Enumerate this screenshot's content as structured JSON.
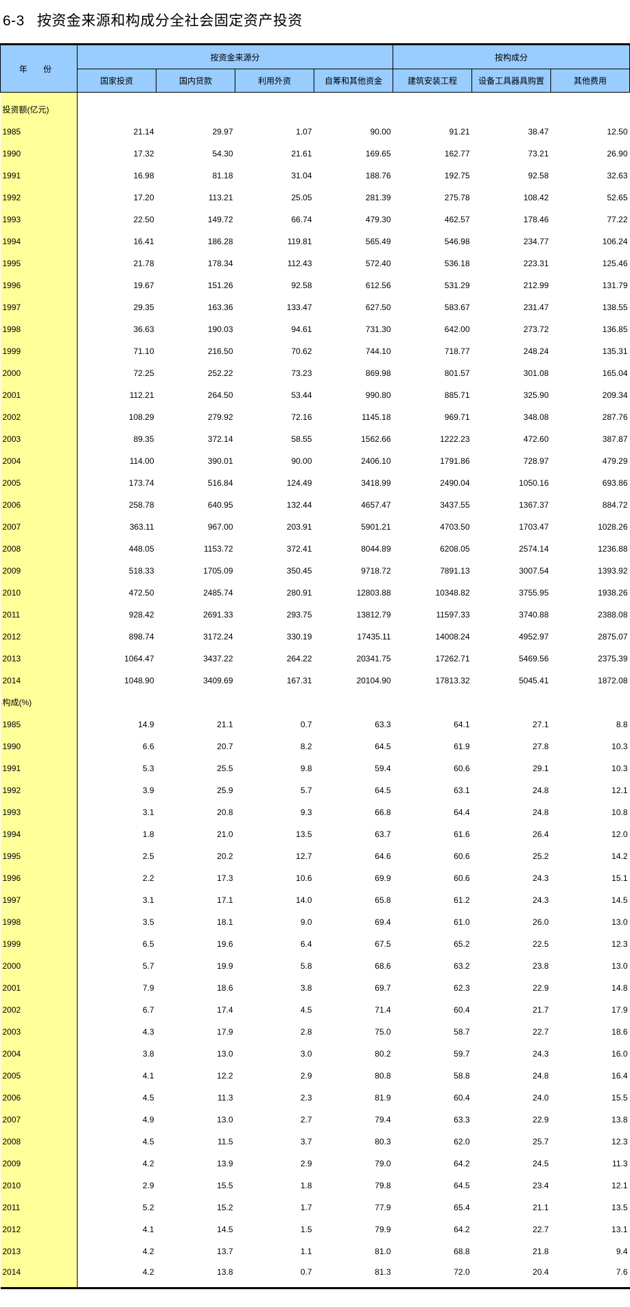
{
  "title": {
    "number": "6-3",
    "text": "按资金来源和构成分全社会固定资产投资"
  },
  "colors": {
    "header_bg": "#99CCFF",
    "year_col_bg": "#FFFF99"
  },
  "header": {
    "year_label": "年 份",
    "group_source": "按资金来源分",
    "group_composition": "按构成分",
    "columns": [
      "国家投资",
      "国内贷款",
      "利用外资",
      "自筹和其他资金",
      "建筑安装工程",
      "设备工具器具购置",
      "其他费用"
    ]
  },
  "sections": [
    {
      "label": "投资额(亿元)",
      "rows": [
        {
          "year": "1985",
          "values": [
            "21.14",
            "29.97",
            "1.07",
            "90.00",
            "91.21",
            "38.47",
            "12.50"
          ]
        },
        {
          "year": "1990",
          "values": [
            "17.32",
            "54.30",
            "21.61",
            "169.65",
            "162.77",
            "73.21",
            "26.90"
          ]
        },
        {
          "year": "1991",
          "values": [
            "16.98",
            "81.18",
            "31.04",
            "188.76",
            "192.75",
            "92.58",
            "32.63"
          ]
        },
        {
          "year": "1992",
          "values": [
            "17.20",
            "113.21",
            "25.05",
            "281.39",
            "275.78",
            "108.42",
            "52.65"
          ]
        },
        {
          "year": "1993",
          "values": [
            "22.50",
            "149.72",
            "66.74",
            "479.30",
            "462.57",
            "178.46",
            "77.22"
          ]
        },
        {
          "year": "1994",
          "values": [
            "16.41",
            "186.28",
            "119.81",
            "565.49",
            "546.98",
            "234.77",
            "106.24"
          ]
        },
        {
          "year": "1995",
          "values": [
            "21.78",
            "178.34",
            "112.43",
            "572.40",
            "536.18",
            "223.31",
            "125.46"
          ]
        },
        {
          "year": "1996",
          "values": [
            "19.67",
            "151.26",
            "92.58",
            "612.56",
            "531.29",
            "212.99",
            "131.79"
          ]
        },
        {
          "year": "1997",
          "values": [
            "29.35",
            "163.36",
            "133.47",
            "627.50",
            "583.67",
            "231.47",
            "138.55"
          ]
        },
        {
          "year": "1998",
          "values": [
            "36.63",
            "190.03",
            "94.61",
            "731.30",
            "642.00",
            "273.72",
            "136.85"
          ]
        },
        {
          "year": "1999",
          "values": [
            "71.10",
            "216.50",
            "70.62",
            "744.10",
            "718.77",
            "248.24",
            "135.31"
          ]
        },
        {
          "year": "2000",
          "values": [
            "72.25",
            "252.22",
            "73.23",
            "869.98",
            "801.57",
            "301.08",
            "165.04"
          ]
        },
        {
          "year": "2001",
          "values": [
            "112.21",
            "264.50",
            "53.44",
            "990.80",
            "885.71",
            "325.90",
            "209.34"
          ]
        },
        {
          "year": "2002",
          "values": [
            "108.29",
            "279.92",
            "72.16",
            "1145.18",
            "969.71",
            "348.08",
            "287.76"
          ]
        },
        {
          "year": "2003",
          "values": [
            "89.35",
            "372.14",
            "58.55",
            "1562.66",
            "1222.23",
            "472.60",
            "387.87"
          ]
        },
        {
          "year": "2004",
          "values": [
            "114.00",
            "390.01",
            "90.00",
            "2406.10",
            "1791.86",
            "728.97",
            "479.29"
          ]
        },
        {
          "year": "2005",
          "values": [
            "173.74",
            "516.84",
            "124.49",
            "3418.99",
            "2490.04",
            "1050.16",
            "693.86"
          ]
        },
        {
          "year": "2006",
          "values": [
            "258.78",
            "640.95",
            "132.44",
            "4657.47",
            "3437.55",
            "1367.37",
            "884.72"
          ]
        },
        {
          "year": "2007",
          "values": [
            "363.11",
            "967.00",
            "203.91",
            "5901.21",
            "4703.50",
            "1703.47",
            "1028.26"
          ]
        },
        {
          "year": "2008",
          "values": [
            "448.05",
            "1153.72",
            "372.41",
            "8044.89",
            "6208.05",
            "2574.14",
            "1236.88"
          ]
        },
        {
          "year": "2009",
          "values": [
            "518.33",
            "1705.09",
            "350.45",
            "9718.72",
            "7891.13",
            "3007.54",
            "1393.92"
          ]
        },
        {
          "year": "2010",
          "values": [
            "472.50",
            "2485.74",
            "280.91",
            "12803.88",
            "10348.82",
            "3755.95",
            "1938.26"
          ]
        },
        {
          "year": "2011",
          "values": [
            "928.42",
            "2691.33",
            "293.75",
            "13812.79",
            "11597.33",
            "3740.88",
            "2388.08"
          ]
        },
        {
          "year": "2012",
          "values": [
            "898.74",
            "3172.24",
            "330.19",
            "17435.11",
            "14008.24",
            "4952.97",
            "2875.07"
          ]
        },
        {
          "year": "2013",
          "values": [
            "1064.47",
            "3437.22",
            "264.22",
            "20341.75",
            "17262.71",
            "5469.56",
            "2375.39"
          ]
        },
        {
          "year": "2014",
          "values": [
            "1048.90",
            "3409.69",
            "167.31",
            "20104.90",
            "17813.32",
            "5045.41",
            "1872.08"
          ]
        }
      ]
    },
    {
      "label": "构成(%)",
      "rows": [
        {
          "year": "1985",
          "values": [
            "14.9",
            "21.1",
            "0.7",
            "63.3",
            "64.1",
            "27.1",
            "8.8"
          ]
        },
        {
          "year": "1990",
          "values": [
            "6.6",
            "20.7",
            "8.2",
            "64.5",
            "61.9",
            "27.8",
            "10.3"
          ]
        },
        {
          "year": "1991",
          "values": [
            "5.3",
            "25.5",
            "9.8",
            "59.4",
            "60.6",
            "29.1",
            "10.3"
          ]
        },
        {
          "year": "1992",
          "values": [
            "3.9",
            "25.9",
            "5.7",
            "64.5",
            "63.1",
            "24.8",
            "12.1"
          ]
        },
        {
          "year": "1993",
          "values": [
            "3.1",
            "20.8",
            "9.3",
            "66.8",
            "64.4",
            "24.8",
            "10.8"
          ]
        },
        {
          "year": "1994",
          "values": [
            "1.8",
            "21.0",
            "13.5",
            "63.7",
            "61.6",
            "26.4",
            "12.0"
          ]
        },
        {
          "year": "1995",
          "values": [
            "2.5",
            "20.2",
            "12.7",
            "64.6",
            "60.6",
            "25.2",
            "14.2"
          ]
        },
        {
          "year": "1996",
          "values": [
            "2.2",
            "17.3",
            "10.6",
            "69.9",
            "60.6",
            "24.3",
            "15.1"
          ]
        },
        {
          "year": "1997",
          "values": [
            "3.1",
            "17.1",
            "14.0",
            "65.8",
            "61.2",
            "24.3",
            "14.5"
          ]
        },
        {
          "year": "1998",
          "values": [
            "3.5",
            "18.1",
            "9.0",
            "69.4",
            "61.0",
            "26.0",
            "13.0"
          ]
        },
        {
          "year": "1999",
          "values": [
            "6.5",
            "19.6",
            "6.4",
            "67.5",
            "65.2",
            "22.5",
            "12.3"
          ]
        },
        {
          "year": "2000",
          "values": [
            "5.7",
            "19.9",
            "5.8",
            "68.6",
            "63.2",
            "23.8",
            "13.0"
          ]
        },
        {
          "year": "2001",
          "values": [
            "7.9",
            "18.6",
            "3.8",
            "69.7",
            "62.3",
            "22.9",
            "14.8"
          ]
        },
        {
          "year": "2002",
          "values": [
            "6.7",
            "17.4",
            "4.5",
            "71.4",
            "60.4",
            "21.7",
            "17.9"
          ]
        },
        {
          "year": "2003",
          "values": [
            "4.3",
            "17.9",
            "2.8",
            "75.0",
            "58.7",
            "22.7",
            "18.6"
          ]
        },
        {
          "year": "2004",
          "values": [
            "3.8",
            "13.0",
            "3.0",
            "80.2",
            "59.7",
            "24.3",
            "16.0"
          ]
        },
        {
          "year": "2005",
          "values": [
            "4.1",
            "12.2",
            "2.9",
            "80.8",
            "58.8",
            "24.8",
            "16.4"
          ]
        },
        {
          "year": "2006",
          "values": [
            "4.5",
            "11.3",
            "2.3",
            "81.9",
            "60.4",
            "24.0",
            "15.5"
          ]
        },
        {
          "year": "2007",
          "values": [
            "4.9",
            "13.0",
            "2.7",
            "79.4",
            "63.3",
            "22.9",
            "13.8"
          ]
        },
        {
          "year": "2008",
          "values": [
            "4.5",
            "11.5",
            "3.7",
            "80.3",
            "62.0",
            "25.7",
            "12.3"
          ]
        },
        {
          "year": "2009",
          "values": [
            "4.2",
            "13.9",
            "2.9",
            "79.0",
            "64.2",
            "24.5",
            "11.3"
          ]
        },
        {
          "year": "2010",
          "values": [
            "2.9",
            "15.5",
            "1.8",
            "79.8",
            "64.5",
            "23.4",
            "12.1"
          ]
        },
        {
          "year": "2011",
          "values": [
            "5.2",
            "15.2",
            "1.7",
            "77.9",
            "65.4",
            "21.1",
            "13.5"
          ]
        },
        {
          "year": "2012",
          "values": [
            "4.1",
            "14.5",
            "1.5",
            "79.9",
            "64.2",
            "22.7",
            "13.1"
          ]
        },
        {
          "year": "2013",
          "values": [
            "4.2",
            "13.7",
            "1.1",
            "81.0",
            "68.8",
            "21.8",
            "9.4"
          ]
        },
        {
          "year": "2014",
          "values": [
            "4.2",
            "13.8",
            "0.7",
            "81.3",
            "72.0",
            "20.4",
            "7.6"
          ]
        }
      ]
    }
  ]
}
